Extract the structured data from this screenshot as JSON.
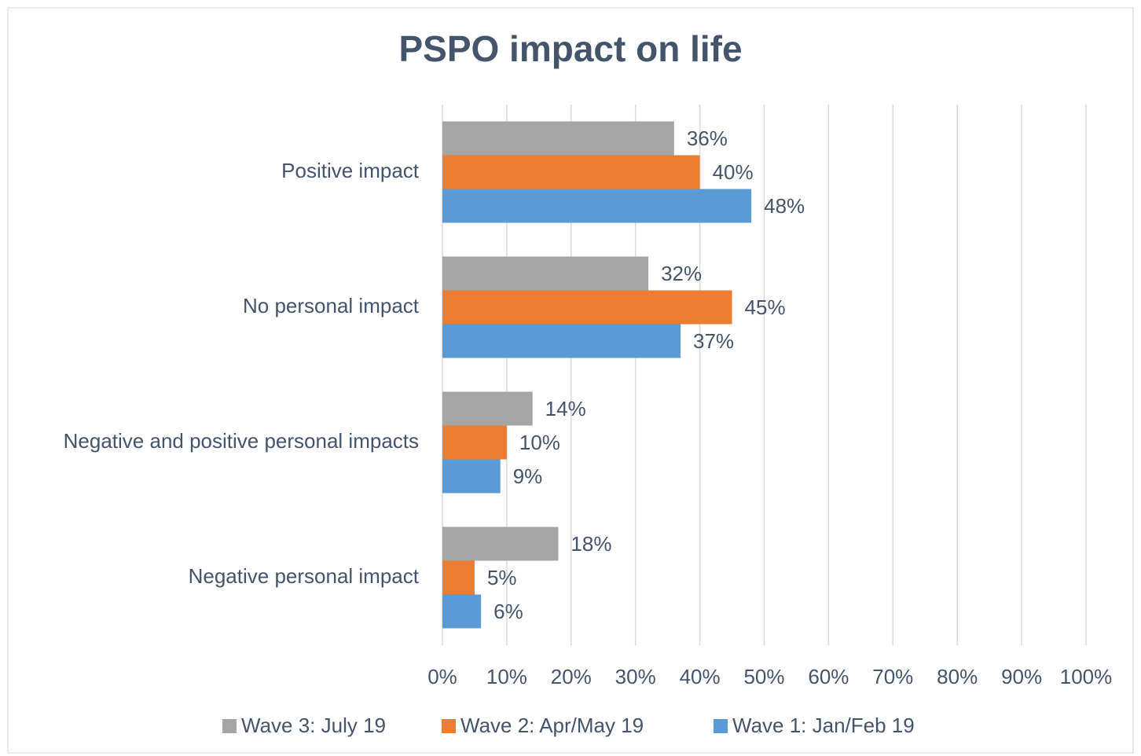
{
  "chart_data": {
    "type": "barh",
    "title": "PSPO impact on life",
    "categories": [
      "Positive impact",
      "No personal impact",
      "Negative and positive personal impacts",
      "Negative personal impact"
    ],
    "series": [
      {
        "name": "Wave 3: July 19",
        "color": "#a5a5a5",
        "values": [
          36,
          32,
          14,
          18
        ],
        "value_labels": [
          "36%",
          "32%",
          "14%",
          "18%"
        ]
      },
      {
        "name": "Wave 2: Apr/May 19",
        "color": "#ed7d31",
        "values": [
          40,
          45,
          10,
          5
        ],
        "value_labels": [
          "40%",
          "45%",
          "10%",
          "5%"
        ]
      },
      {
        "name": "Wave 1: Jan/Feb 19",
        "color": "#5b9bd5",
        "values": [
          48,
          37,
          9,
          6
        ],
        "value_labels": [
          "48%",
          "37%",
          "9%",
          "6%"
        ]
      }
    ],
    "xlim": [
      0,
      100
    ],
    "xticks": [
      {
        "value": 0,
        "label": "0%"
      },
      {
        "value": 10,
        "label": "10%"
      },
      {
        "value": 20,
        "label": "20%"
      },
      {
        "value": 30,
        "label": "30%"
      },
      {
        "value": 40,
        "label": "40%"
      },
      {
        "value": 50,
        "label": "50%"
      },
      {
        "value": 60,
        "label": "60%"
      },
      {
        "value": 70,
        "label": "70%"
      },
      {
        "value": 80,
        "label": "80%"
      },
      {
        "value": 90,
        "label": "90%"
      },
      {
        "value": 100,
        "label": "100%"
      }
    ],
    "grid": true,
    "legend": "bottom"
  }
}
